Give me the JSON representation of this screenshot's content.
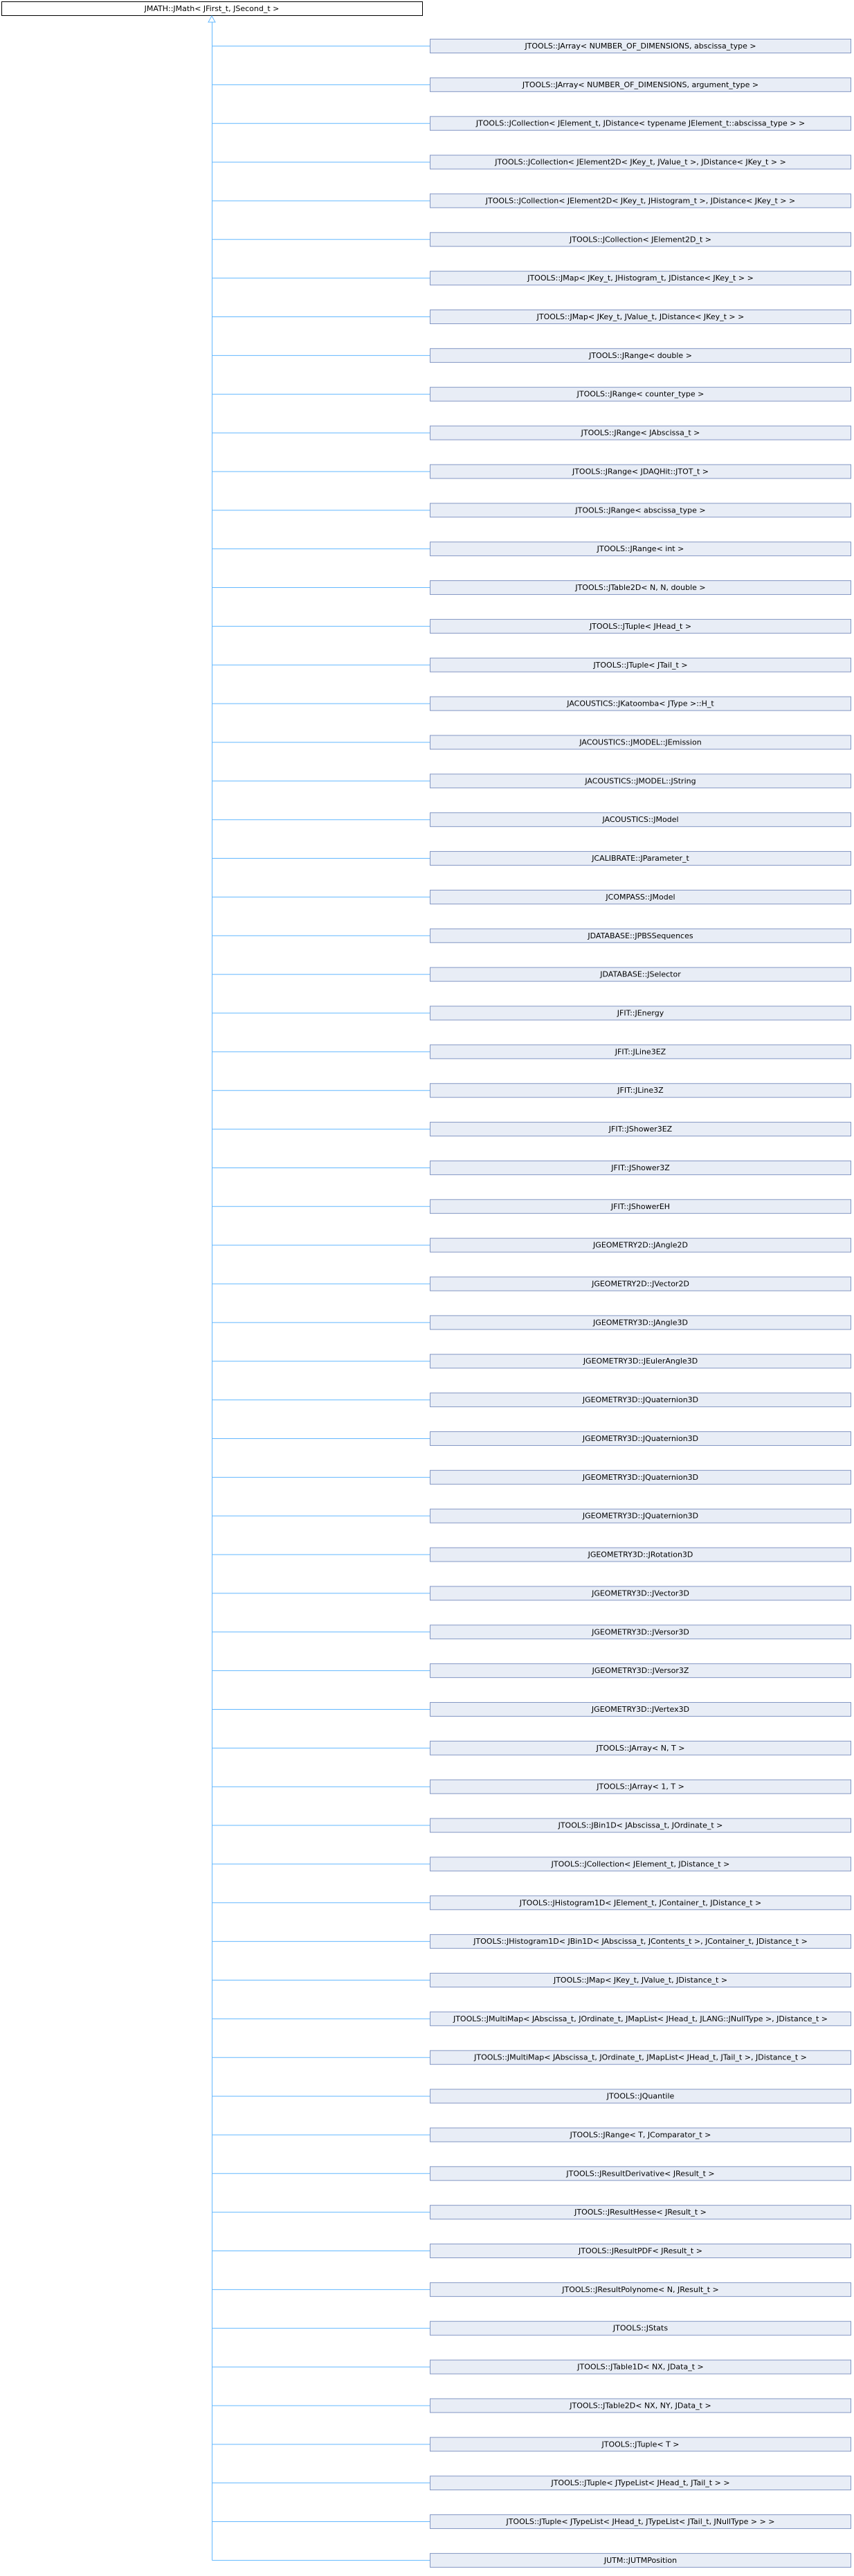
{
  "root": "JMATH::JMath< JFirst_t, JSecond_t >",
  "children": [
    "JTOOLS::JArray< NUMBER_OF_DIMENSIONS, abscissa_type >",
    "JTOOLS::JArray< NUMBER_OF_DIMENSIONS, argument_type >",
    "JTOOLS::JCollection< JElement_t, JDistance< typename JElement_t::abscissa_type > >",
    "JTOOLS::JCollection< JElement2D< JKey_t, JValue_t >, JDistance< JKey_t > >",
    "JTOOLS::JCollection< JElement2D< JKey_t, JHistogram_t >, JDistance< JKey_t > >",
    "JTOOLS::JCollection< JElement2D_t >",
    "JTOOLS::JMap< JKey_t, JHistogram_t, JDistance< JKey_t > >",
    "JTOOLS::JMap< JKey_t, JValue_t, JDistance< JKey_t > >",
    "JTOOLS::JRange< double >",
    "JTOOLS::JRange< counter_type >",
    "JTOOLS::JRange< JAbscissa_t >",
    "JTOOLS::JRange< JDAQHit::JTOT_t >",
    "JTOOLS::JRange< abscissa_type >",
    "JTOOLS::JRange< int >",
    "JTOOLS::JTable2D< N, N, double >",
    "JTOOLS::JTuple< JHead_t >",
    "JTOOLS::JTuple< JTail_t >",
    "JACOUSTICS::JKatoomba< JType >::H_t",
    "JACOUSTICS::JMODEL::JEmission",
    "JACOUSTICS::JMODEL::JString",
    "JACOUSTICS::JModel",
    "JCALIBRATE::JParameter_t",
    "JCOMPASS::JModel",
    "JDATABASE::JPBSSequences",
    "JDATABASE::JSelector",
    "JFIT::JEnergy",
    "JFIT::JLine3EZ",
    "JFIT::JLine3Z",
    "JFIT::JShower3EZ",
    "JFIT::JShower3Z",
    "JFIT::JShowerEH",
    "JGEOMETRY2D::JAngle2D",
    "JGEOMETRY2D::JVector2D",
    "JGEOMETRY3D::JAngle3D",
    "JGEOMETRY3D::JEulerAngle3D",
    "JGEOMETRY3D::JQuaternion3D",
    "JGEOMETRY3D::JQuaternion3D",
    "JGEOMETRY3D::JQuaternion3D",
    "JGEOMETRY3D::JQuaternion3D",
    "JGEOMETRY3D::JRotation3D",
    "JGEOMETRY3D::JVector3D",
    "JGEOMETRY3D::JVersor3D",
    "JGEOMETRY3D::JVersor3Z",
    "JGEOMETRY3D::JVertex3D",
    "JTOOLS::JArray< N, T >",
    "JTOOLS::JArray< 1, T >",
    "JTOOLS::JBin1D< JAbscissa_t, JOrdinate_t >",
    "JTOOLS::JCollection< JElement_t, JDistance_t >",
    "JTOOLS::JHistogram1D< JElement_t, JContainer_t, JDistance_t >",
    "JTOOLS::JHistogram1D< JBin1D< JAbscissa_t, JContents_t >, JContainer_t, JDistance_t >",
    "JTOOLS::JMap< JKey_t, JValue_t, JDistance_t >",
    "JTOOLS::JMultiMap< JAbscissa_t, JOrdinate_t, JMapList< JHead_t, JLANG::JNullType >, JDistance_t >",
    "JTOOLS::JMultiMap< JAbscissa_t, JOrdinate_t, JMapList< JHead_t, JTail_t >, JDistance_t >",
    "JTOOLS::JQuantile",
    "JTOOLS::JRange< T, JComparator_t >",
    "JTOOLS::JResultDerivative< JResult_t >",
    "JTOOLS::JResultHesse< JResult_t >",
    "JTOOLS::JResultPDF< JResult_t >",
    "JTOOLS::JResultPolynome< N, JResult_t >",
    "JTOOLS::JStats",
    "JTOOLS::JTable1D< NX, JData_t >",
    "JTOOLS::JTable2D< NX, NY, JData_t >",
    "JTOOLS::JTuple< T >",
    "JTOOLS::JTuple< JTypeList< JHead_t, JTail_t > >",
    "JTOOLS::JTuple< JTypeList< JHead_t, JTypeList< JTail_t, JNullType > > >",
    "JUTM::JUTMPosition"
  ]
}
